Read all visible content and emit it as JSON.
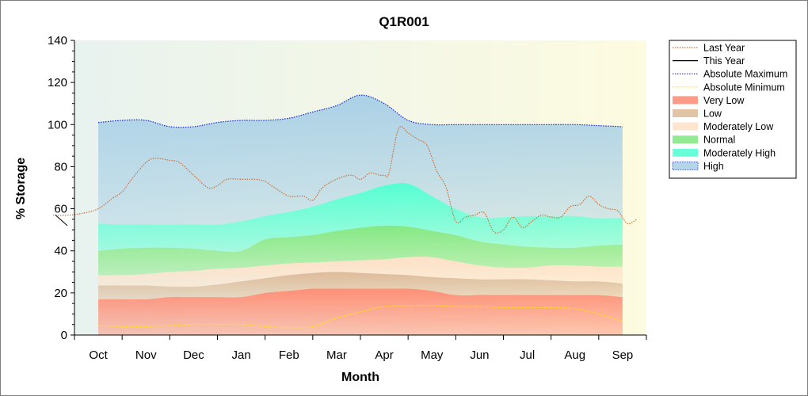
{
  "chart_data": {
    "type": "area",
    "title": "Q1R001",
    "xlabel": "Month",
    "ylabel": "% Storage",
    "categories": [
      "Oct",
      "Nov",
      "Dec",
      "Jan",
      "Feb",
      "Mar",
      "Apr",
      "May",
      "Jun",
      "Jul",
      "Aug",
      "Sep"
    ],
    "xlim": [
      0,
      12
    ],
    "ylim": [
      0,
      140
    ],
    "yticks": [
      0,
      20,
      40,
      60,
      80,
      100,
      120,
      140
    ],
    "band_x": [
      0.5,
      1.0,
      1.5,
      2.0,
      2.5,
      3.0,
      3.5,
      4.0,
      4.5,
      5.0,
      5.5,
      6.0,
      6.5,
      7.0,
      7.5,
      8.0,
      8.5,
      9.0,
      9.5,
      10.0,
      10.5,
      11.0,
      11.5
    ],
    "bands": [
      {
        "name": "Very Low",
        "color": "#ff8a72",
        "bottom": [
          0,
          0,
          0,
          0,
          0,
          0,
          0,
          0,
          0,
          0,
          0,
          0,
          0,
          0,
          0,
          0,
          0,
          0,
          0,
          0,
          0,
          0,
          0
        ],
        "top": [
          17,
          17,
          17,
          18,
          18,
          18,
          18,
          20,
          21,
          22,
          22,
          22,
          22,
          22,
          21,
          19,
          19,
          19,
          19,
          19,
          19,
          19,
          18
        ]
      },
      {
        "name": "Low",
        "color": "#dcb896",
        "bottom": [
          17,
          17,
          17,
          18,
          18,
          18,
          18,
          20,
          21,
          22,
          22,
          22,
          22,
          22,
          21,
          19,
          19,
          19,
          19,
          19,
          19,
          19,
          18
        ],
        "top": [
          23.5,
          23.5,
          23.5,
          23,
          23,
          24,
          25.5,
          27,
          28.5,
          29.5,
          30,
          29.5,
          29,
          28.5,
          27.5,
          27,
          26.5,
          26.5,
          26.5,
          26,
          25.5,
          25.5,
          24.5
        ]
      },
      {
        "name": "Moderately Low",
        "color": "#ffdfc5",
        "bottom": [
          23.5,
          23.5,
          23.5,
          23,
          23,
          24,
          25.5,
          27,
          28.5,
          29.5,
          30,
          29.5,
          29,
          28.5,
          27.5,
          27,
          26.5,
          26.5,
          26.5,
          26,
          25.5,
          25.5,
          24.5
        ],
        "top": [
          28.5,
          28.5,
          29,
          30,
          30.5,
          31.5,
          32,
          33,
          34,
          34.5,
          35,
          35.5,
          36,
          37,
          37,
          35,
          33,
          32,
          32,
          33,
          33,
          32.5,
          32.5
        ]
      },
      {
        "name": "Normal",
        "color": "#7fe87f",
        "bottom": [
          28.5,
          28.5,
          29,
          30,
          30.5,
          31.5,
          32,
          33,
          34,
          34.5,
          35,
          35.5,
          36,
          37,
          37,
          35,
          33,
          32,
          32,
          33,
          33,
          32.5,
          32.5
        ],
        "top": [
          40,
          41,
          41.5,
          41.5,
          41,
          40,
          40,
          45.5,
          46.5,
          47.5,
          49.5,
          51,
          52,
          51.5,
          49.5,
          47.5,
          44.5,
          43,
          42,
          41.5,
          41.5,
          42.5,
          43
        ]
      },
      {
        "name": "Moderately High",
        "color": "#4dffd2",
        "bottom": [
          40,
          41,
          41.5,
          41.5,
          41,
          40,
          40,
          45.5,
          46.5,
          47.5,
          49.5,
          51,
          52,
          51.5,
          49.5,
          47.5,
          44.5,
          43,
          42,
          41.5,
          41.5,
          42.5,
          43
        ],
        "top": [
          53,
          52.5,
          52.5,
          52.5,
          52.5,
          52.5,
          54,
          56.5,
          58.5,
          61,
          64.5,
          67.5,
          71,
          72,
          66,
          60,
          56,
          56,
          56.5,
          56.5,
          56.5,
          55.5,
          55.5
        ]
      },
      {
        "name": "High",
        "color": "#a7cfe6",
        "bottom": [
          53,
          52.5,
          52.5,
          52.5,
          52.5,
          52.5,
          54,
          56.5,
          58.5,
          61,
          64.5,
          67.5,
          71,
          72,
          66,
          60,
          56,
          56,
          56.5,
          56.5,
          56.5,
          55.5,
          55.5
        ],
        "top": [
          101,
          102,
          102,
          99,
          99,
          101,
          102,
          102,
          103,
          106,
          109,
          114,
          110,
          102,
          100,
          100,
          100,
          100,
          100,
          100,
          100,
          99.5,
          99
        ]
      }
    ],
    "series": [
      {
        "name": "Last Year",
        "color": "#c8703c",
        "style": "dotted",
        "x": [
          -0.45,
          -0.1,
          0.2,
          0.5,
          0.8,
          1.0,
          1.2,
          1.5,
          1.7,
          2.0,
          2.2,
          2.5,
          2.8,
          3.0,
          3.2,
          3.5,
          3.8,
          4.0,
          4.2,
          4.5,
          4.8,
          5.0,
          5.2,
          5.5,
          5.8,
          6.0,
          6.2,
          6.4,
          6.5,
          6.6,
          6.8,
          7.0,
          7.2,
          7.4,
          7.6,
          7.8,
          8.0,
          8.2,
          8.4,
          8.6,
          8.8,
          9.0,
          9.2,
          9.4,
          9.6,
          9.8,
          10.0,
          10.2,
          10.4,
          10.6,
          10.8,
          11.0,
          11.2,
          11.4,
          11.6,
          11.8
        ],
        "values": [
          57,
          57,
          58,
          60,
          65,
          68,
          74,
          82,
          84,
          83,
          82,
          76,
          70,
          71,
          74,
          74,
          74,
          73,
          70,
          66,
          66,
          64,
          70,
          74,
          76,
          74,
          77,
          76,
          76,
          77,
          98,
          96,
          93,
          90,
          78,
          70,
          54,
          56,
          57,
          58,
          49,
          50,
          56,
          51,
          54,
          57,
          56,
          56,
          61,
          62,
          66,
          62,
          60,
          59,
          53,
          55
        ]
      },
      {
        "name": "This Year",
        "color": "#000000",
        "style": "solid",
        "x": [
          -0.4,
          -0.15
        ],
        "values": [
          57,
          52
        ]
      },
      {
        "name": "Absolute Maximum",
        "color": "#1a2adc",
        "style": "dotted",
        "x": [
          0.5,
          1.0,
          1.5,
          2.0,
          2.5,
          3.0,
          3.5,
          4.0,
          4.5,
          5.0,
          5.5,
          6.0,
          6.5,
          7.0,
          7.5,
          8.0,
          8.5,
          9.0,
          9.5,
          10.0,
          10.5,
          11.0,
          11.5
        ],
        "values": [
          101,
          102,
          102,
          99,
          99,
          101,
          102,
          102,
          103,
          106,
          109,
          114,
          110,
          102,
          100,
          100,
          100,
          100,
          100,
          100,
          100,
          99.5,
          99
        ]
      },
      {
        "name": "Absolute Minimum",
        "color": "#ffea00",
        "style": "dotted",
        "x": [
          0.5,
          1.0,
          1.5,
          2.0,
          2.5,
          3.0,
          3.5,
          4.0,
          4.5,
          5.0,
          5.5,
          6.0,
          6.5,
          7.0,
          7.5,
          8.0,
          8.5,
          9.0,
          9.5,
          10.0,
          10.5,
          11.0,
          11.5
        ],
        "values": [
          4.5,
          4,
          4,
          4.5,
          5,
          5,
          5,
          4,
          3.5,
          4,
          8,
          11,
          13.5,
          14,
          14,
          13.5,
          13.5,
          13,
          13,
          13,
          12.5,
          10,
          6.5
        ]
      }
    ],
    "legend": {
      "position": "right",
      "entries": [
        {
          "label": "Last Year",
          "kind": "line",
          "color": "#c8703c",
          "style": "dotted"
        },
        {
          "label": "This Year",
          "kind": "line",
          "color": "#000000",
          "style": "solid"
        },
        {
          "label": "Absolute Maximum",
          "kind": "line",
          "color": "#1a2adc",
          "style": "dotted"
        },
        {
          "label": "Absolute Minimum",
          "kind": "line",
          "color": "#ffea00",
          "style": "dotted"
        },
        {
          "label": "Very Low",
          "kind": "swatch",
          "color": "#ff8a72"
        },
        {
          "label": "Low",
          "kind": "swatch",
          "color": "#dcb896"
        },
        {
          "label": "Moderately Low",
          "kind": "swatch",
          "color": "#ffdfc5"
        },
        {
          "label": "Normal",
          "kind": "swatch",
          "color": "#7fe87f"
        },
        {
          "label": "Moderately High",
          "kind": "swatch",
          "color": "#4dffd2"
        },
        {
          "label": "High",
          "kind": "swatch",
          "color": "#a7cfe6",
          "style": "dotted-border"
        }
      ]
    },
    "grid": false,
    "background_gradient": [
      "#e8f2ee",
      "#fdfbe0"
    ]
  }
}
